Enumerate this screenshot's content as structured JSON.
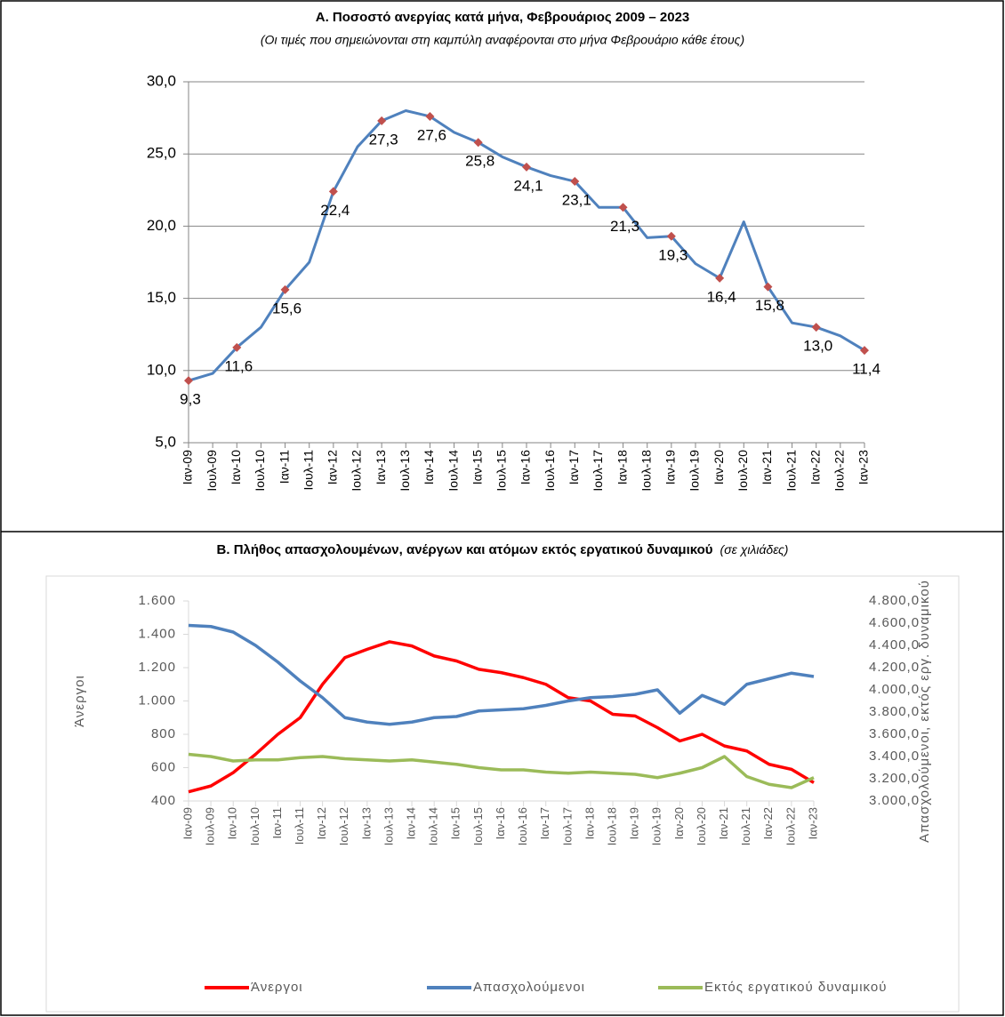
{
  "chart_data": [
    {
      "type": "line",
      "title": "Α. Ποσοστό ανεργίας κατά μήνα, Φεβρουάριος 2009 – 2023",
      "subtitle": "(Οι τιμές που σημειώνονται στη καμπύλη αναφέρονται στο μήνα Φεβρουάριο κάθε έτους)",
      "categories": [
        "Ιαν-09",
        "Ιουλ-09",
        "Ιαν-10",
        "Ιουλ-10",
        "Ιαν-11",
        "Ιουλ-11",
        "Ιαν-12",
        "Ιουλ-12",
        "Ιαν-13",
        "Ιουλ-13",
        "Ιαν-14",
        "Ιουλ-14",
        "Ιαν-15",
        "Ιουλ-15",
        "Ιαν-16",
        "Ιουλ-16",
        "Ιαν-17",
        "Ιουλ-17",
        "Ιαν-18",
        "Ιουλ-18",
        "Ιαν-19",
        "Ιουλ-19",
        "Ιαν-20",
        "Ιουλ-20",
        "Ιαν-21",
        "Ιουλ-21",
        "Ιαν-22",
        "Ιουλ-22",
        "Ιαν-23"
      ],
      "series": [
        {
          "color": "#4f81bd",
          "values": [
            9.3,
            9.8,
            11.6,
            13.0,
            15.6,
            17.5,
            22.4,
            25.5,
            27.3,
            28.0,
            27.6,
            26.5,
            25.8,
            24.8,
            24.1,
            23.5,
            23.1,
            21.3,
            21.3,
            19.2,
            19.3,
            17.4,
            16.4,
            20.3,
            15.8,
            13.3,
            13.0,
            12.4,
            11.4
          ]
        },
        {
          "color": "#c0504d",
          "marker": "diamond",
          "values": [
            9.3,
            null,
            11.6,
            null,
            15.6,
            null,
            22.4,
            null,
            27.3,
            null,
            27.6,
            null,
            25.8,
            null,
            24.1,
            null,
            23.1,
            null,
            21.3,
            null,
            19.3,
            null,
            16.4,
            null,
            15.8,
            null,
            13.0,
            null,
            11.4
          ],
          "value_labels": [
            "9,3",
            null,
            "11,6",
            null,
            "15,6",
            null,
            "22,4",
            null,
            "27,3",
            null,
            "27,6",
            null,
            "25,8",
            null,
            "24,1",
            null,
            "23,1",
            null,
            "21,3",
            null,
            "19,3",
            null,
            "16,4",
            null,
            "15,8",
            null,
            "13,0",
            null,
            "11,4"
          ]
        }
      ],
      "ylim": [
        5,
        30
      ],
      "yticks": [
        {
          "value": 5,
          "label": "5,0"
        },
        {
          "value": 10,
          "label": "10,0"
        },
        {
          "value": 15,
          "label": "15,0"
        },
        {
          "value": 20,
          "label": "20,0"
        },
        {
          "value": 25,
          "label": "25,0"
        },
        {
          "value": 30,
          "label": "30,0"
        }
      ],
      "grid": true
    },
    {
      "type": "line",
      "title": "Β. Πλήθος απασχολουμένων, ανέργων και ατόμων εκτός εργατικού δυναμικού",
      "subtitle": "(σε χιλιάδες)",
      "y_label": "Άνεργοι",
      "y2_label": "Απασχολούμενοι, εκτός εργ. δυναμικού",
      "categories": [
        "Ιαν-09",
        "Ιουλ-09",
        "Ιαν-10",
        "Ιουλ-10",
        "Ιαν-11",
        "Ιουλ-11",
        "Ιαν-12",
        "Ιουλ-12",
        "Ιαν-13",
        "Ιουλ-13",
        "Ιαν-14",
        "Ιουλ-14",
        "Ιαν-15",
        "Ιουλ-15",
        "Ιαν-16",
        "Ιουλ-16",
        "Ιαν-17",
        "Ιουλ-17",
        "Ιαν-18",
        "Ιουλ-18",
        "Ιαν-19",
        "Ιουλ-19",
        "Ιαν-20",
        "Ιουλ-20",
        "Ιαν-21",
        "Ιουλ-21",
        "Ιαν-22",
        "Ιουλ-22",
        "Ιαν-23"
      ],
      "series": [
        {
          "name": "Άνεργοι",
          "color": "#ff0000",
          "values": [
            455,
            490,
            570,
            680,
            800,
            900,
            1100,
            1260,
            1310,
            1355,
            1330,
            1270,
            1240,
            1190,
            1170,
            1140,
            1100,
            1020,
            1000,
            920,
            910,
            840,
            760,
            800,
            730,
            700,
            620,
            590,
            510
          ]
        },
        {
          "name": "Απασχολούμενοι",
          "color": "#4f81bd",
          "axis": "y2",
          "values": [
            4580,
            4570,
            4520,
            4400,
            4250,
            4080,
            3930,
            3750,
            3710,
            3690,
            3710,
            3750,
            3760,
            3810,
            3820,
            3830,
            3860,
            3900,
            3930,
            3940,
            3960,
            4000,
            3790,
            3950,
            3870,
            4050,
            4100,
            4150,
            4120
          ]
        },
        {
          "name": "Εκτός εργατικού δυναμικού",
          "color": "#9bbb59",
          "axis": "y2",
          "values": [
            3420,
            3400,
            3360,
            3370,
            3370,
            3390,
            3400,
            3380,
            3370,
            3360,
            3370,
            3350,
            3330,
            3300,
            3280,
            3280,
            3260,
            3250,
            3260,
            3250,
            3240,
            3210,
            3250,
            3300,
            3400,
            3220,
            3150,
            3120,
            3210
          ]
        }
      ],
      "ylim": [
        400,
        1600
      ],
      "yticks": [
        400,
        600,
        800,
        {
          "value": 1000,
          "label": "1.000"
        },
        {
          "value": 1200,
          "label": "1.200"
        },
        {
          "value": 1400,
          "label": "1.400"
        },
        {
          "value": 1600,
          "label": "1.600"
        }
      ],
      "y2lim": [
        3000,
        4800
      ],
      "y2ticks": [
        {
          "value": 3000,
          "label": "3.000,0"
        },
        {
          "value": 3200,
          "label": "3.200,0"
        },
        {
          "value": 3400,
          "label": "3.400,0"
        },
        {
          "value": 3600,
          "label": "3.600,0"
        },
        {
          "value": 3800,
          "label": "3.800,0"
        },
        {
          "value": 4000,
          "label": "4.000,0"
        },
        {
          "value": 4200,
          "label": "4.200,0"
        },
        {
          "value": 4400,
          "label": "4.400,0"
        },
        {
          "value": 4600,
          "label": "4.600,0"
        },
        {
          "value": 4800,
          "label": "4.800,0"
        }
      ],
      "grid": false,
      "legend": "bottom"
    }
  ]
}
